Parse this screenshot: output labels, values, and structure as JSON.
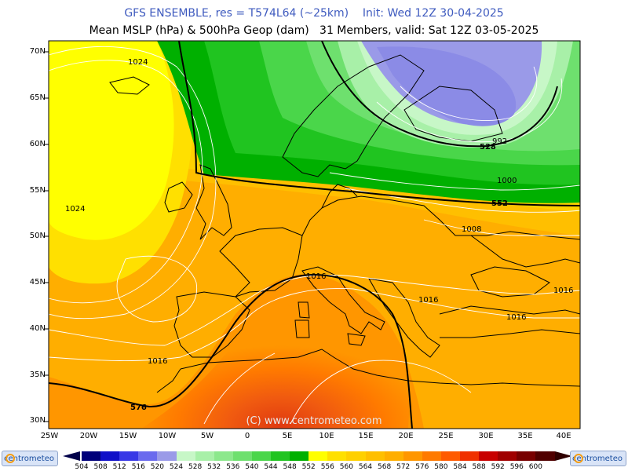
{
  "header": {
    "line1": "GFS ENSEMBLE, res = T574L64 (~25km)    Init: Wed 12Z 30-04-2025",
    "line2": "Mean MSLP (hPa) & 500hPa Geop (dam)   31 Members, valid: Sat 12Z 03-05-2025"
  },
  "watermark": "(C) www.centrometeo.com",
  "axes": {
    "lat_labels": [
      "70N",
      "65N",
      "60N",
      "55N",
      "50N",
      "45N",
      "40N",
      "35N",
      "30N"
    ],
    "lon_labels": [
      "25W",
      "20W",
      "15W",
      "10W",
      "5W",
      "0",
      "5E",
      "10E",
      "15E",
      "20E",
      "25E",
      "30E",
      "35E",
      "40E"
    ]
  },
  "isobar_labels": [
    "1024",
    "1024",
    "1016",
    "1016",
    "1016",
    "1016",
    "1008",
    "1000",
    "992",
    "1016"
  ],
  "geop_labels": [
    "528",
    "552",
    "576"
  ],
  "legend": {
    "values": [
      "504",
      "508",
      "512",
      "516",
      "520",
      "524",
      "528",
      "532",
      "536",
      "540",
      "544",
      "548",
      "552",
      "556",
      "560",
      "564",
      "568",
      "572",
      "576",
      "580",
      "584",
      "588",
      "592",
      "596",
      "600"
    ],
    "colors": [
      "#00007a",
      "#1010c8",
      "#3838e6",
      "#6a6aee",
      "#9a9ae8",
      "#c7f7c7",
      "#a8f0a8",
      "#8ce88c",
      "#6ee06e",
      "#4ad64a",
      "#20c420",
      "#00b000",
      "#ffff00",
      "#ffe000",
      "#ffd000",
      "#ffbf00",
      "#ffae00",
      "#ff9600",
      "#ff7a00",
      "#ff5a00",
      "#f03000",
      "#c80000",
      "#a00000",
      "#780000",
      "#500000"
    ]
  },
  "logo_text": "centrometeo"
}
